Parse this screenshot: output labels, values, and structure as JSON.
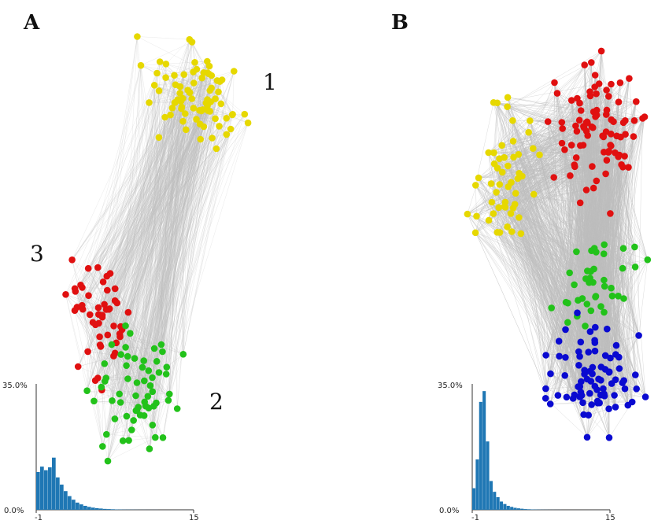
{
  "panels": [
    {
      "label": "A",
      "cluster_labels": [
        "1",
        "2",
        "3"
      ],
      "node_colors": [
        "#e6d800",
        "#e01010",
        "#22c21a"
      ],
      "histogram": {
        "ymax_label": "35.0%",
        "ymin_label": "0.0%",
        "xmin_label": "-1",
        "xmax_label": "15",
        "bar_color": "#1f77b4"
      }
    },
    {
      "label": "B",
      "node_colors": [
        "#e6d800",
        "#e01010",
        "#22c21a",
        "#0a0ad0"
      ],
      "histogram": {
        "ymax_label": "35.0%",
        "ymin_label": "0.0%",
        "xmin_label": "-1",
        "xmax_label": "15",
        "bar_color": "#1f77b4"
      }
    }
  ],
  "chart_data": [
    {
      "type": "bar",
      "title": "",
      "xlabel": "",
      "ylabel": "",
      "xlim": [
        -1,
        15
      ],
      "ylim": [
        0,
        35
      ],
      "x": [
        -1.0,
        -0.6,
        -0.2,
        0.2,
        0.6,
        1.0,
        1.4,
        1.8,
        2.2,
        2.6,
        3.0,
        3.4,
        3.8,
        4.2,
        4.6,
        5.0,
        5.4,
        5.8,
        6.2,
        6.6,
        7.0,
        7.4,
        7.8,
        8.2,
        8.6,
        9.0,
        9.4,
        9.8,
        10.2,
        10.6,
        11.0
      ],
      "values": [
        10.5,
        12.0,
        11.0,
        11.8,
        14.5,
        9.0,
        7.0,
        5.2,
        3.8,
        2.8,
        2.0,
        1.5,
        1.1,
        0.8,
        0.6,
        0.45,
        0.35,
        0.25,
        0.2,
        0.15,
        0.1,
        0.08,
        0.06,
        0.05,
        0.04,
        0.03,
        0.02,
        0.02,
        0.01,
        0.01,
        0.01
      ]
    },
    {
      "type": "bar",
      "title": "",
      "xlabel": "",
      "ylabel": "",
      "xlim": [
        -1,
        15
      ],
      "ylim": [
        0,
        35
      ],
      "x": [
        -1.0,
        -0.6,
        -0.2,
        0.2,
        0.6,
        1.0,
        1.4,
        1.8,
        2.2,
        2.6,
        3.0,
        3.4,
        3.8,
        4.2,
        4.6,
        5.0,
        5.4,
        5.8,
        6.2,
        6.6,
        7.0,
        7.4,
        7.8,
        8.2,
        8.6,
        9.0
      ],
      "values": [
        6.0,
        14.0,
        30.0,
        33.0,
        19.0,
        8.0,
        5.0,
        3.5,
        2.3,
        1.6,
        1.1,
        0.8,
        0.55,
        0.4,
        0.3,
        0.2,
        0.15,
        0.1,
        0.08,
        0.06,
        0.04,
        0.03,
        0.02,
        0.02,
        0.01,
        0.01
      ]
    }
  ]
}
